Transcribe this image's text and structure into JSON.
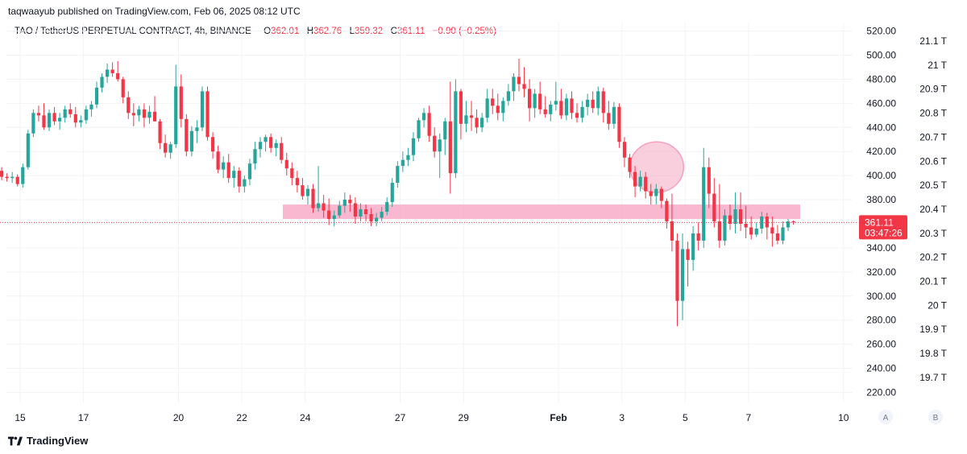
{
  "header": {
    "publisher": "taqwaayub published on TradingView.com, Feb 06, 2025 08:12 UTC",
    "symbol": "TAO / TetherUS PERPETUAL CONTRACT, 4h, BINANCE",
    "o_label": "O",
    "o_value": "362.01",
    "h_label": "H",
    "h_value": "362.76",
    "l_label": "L",
    "l_value": "359.32",
    "c_label": "C",
    "c_value": "361.11",
    "change": "−0.90 (−0.25%)"
  },
  "price_tag": {
    "price": "361.11",
    "countdown": "03:47:26"
  },
  "footer": {
    "brand": "TradingView"
  },
  "colors": {
    "up": "#26a69a",
    "down": "#f23645",
    "zone": "#f7a6c4",
    "circle": "#f5a0bc"
  },
  "axis_buttons": {
    "a": "A",
    "b": "B"
  },
  "chart_data": {
    "type": "candlestick",
    "y_axis_left_ticks": [
      "520.00",
      "500.00",
      "480.00",
      "460.00",
      "440.00",
      "420.00",
      "400.00",
      "380.00",
      "360.00",
      "340.00",
      "320.00",
      "300.00",
      "280.00",
      "260.00",
      "240.00",
      "220.00"
    ],
    "y_axis_right_ticks": [
      "21.1 T",
      "21 T",
      "20.9 T",
      "20.8 T",
      "20.7 T",
      "20.6 T",
      "20.5 T",
      "20.4 T",
      "20.3 T",
      "20.2 T",
      "20.1 T",
      "20 T",
      "19.9 T",
      "19.8 T",
      "19.7 T"
    ],
    "x_axis_ticks": [
      "15",
      "17",
      "20",
      "22",
      "24",
      "27",
      "29",
      "Feb",
      "3",
      "5",
      "7",
      "10"
    ],
    "ylim": [
      213,
      528
    ],
    "x_start": "Jan 14, 2025",
    "candles": [
      [
        400,
        405,
        398,
        402
      ],
      [
        402,
        406,
        399,
        404
      ],
      [
        404,
        407,
        396,
        399
      ],
      [
        399,
        402,
        395,
        398
      ],
      [
        398,
        403,
        394,
        399
      ],
      [
        399,
        401,
        391,
        393
      ],
      [
        393,
        410,
        390,
        407
      ],
      [
        407,
        438,
        405,
        435
      ],
      [
        435,
        455,
        432,
        452
      ],
      [
        452,
        458,
        445,
        450
      ],
      [
        450,
        460,
        438,
        440
      ],
      [
        440,
        455,
        437,
        452
      ],
      [
        452,
        457,
        442,
        445
      ],
      [
        445,
        452,
        438,
        448
      ],
      [
        448,
        458,
        444,
        455
      ],
      [
        455,
        460,
        448,
        451
      ],
      [
        451,
        457,
        440,
        444
      ],
      [
        444,
        450,
        440,
        446
      ],
      [
        446,
        458,
        443,
        455
      ],
      [
        455,
        462,
        449,
        459
      ],
      [
        459,
        478,
        456,
        473
      ],
      [
        473,
        485,
        469,
        482
      ],
      [
        482,
        493,
        477,
        488
      ],
      [
        488,
        494,
        482,
        485
      ],
      [
        485,
        495,
        478,
        480
      ],
      [
        480,
        482,
        460,
        465
      ],
      [
        465,
        470,
        447,
        452
      ],
      [
        452,
        460,
        441,
        450
      ],
      [
        450,
        458,
        445,
        455
      ],
      [
        455,
        460,
        440,
        448
      ],
      [
        448,
        458,
        443,
        453
      ],
      [
        453,
        466,
        446,
        445
      ],
      [
        445,
        447,
        422,
        427
      ],
      [
        427,
        434,
        415,
        419
      ],
      [
        419,
        428,
        414,
        426
      ],
      [
        426,
        492,
        423,
        474
      ],
      [
        474,
        484,
        440,
        447
      ],
      [
        447,
        451,
        416,
        420
      ],
      [
        420,
        441,
        416,
        437
      ],
      [
        437,
        446,
        427,
        440
      ],
      [
        440,
        474,
        437,
        470
      ],
      [
        470,
        474,
        429,
        432
      ],
      [
        432,
        436,
        414,
        420
      ],
      [
        420,
        425,
        402,
        405
      ],
      [
        405,
        416,
        398,
        411
      ],
      [
        411,
        418,
        394,
        398
      ],
      [
        398,
        408,
        390,
        404
      ],
      [
        404,
        407,
        386,
        391
      ],
      [
        391,
        400,
        386,
        397
      ],
      [
        397,
        414,
        392,
        410
      ],
      [
        410,
        428,
        405,
        422
      ],
      [
        422,
        432,
        415,
        428
      ],
      [
        428,
        434,
        420,
        432
      ],
      [
        432,
        435,
        419,
        423
      ],
      [
        423,
        430,
        416,
        427
      ],
      [
        427,
        432,
        410,
        413
      ],
      [
        413,
        419,
        400,
        406
      ],
      [
        406,
        411,
        392,
        398
      ],
      [
        398,
        404,
        386,
        392
      ],
      [
        392,
        398,
        380,
        383
      ],
      [
        383,
        392,
        376,
        389
      ],
      [
        389,
        393,
        369,
        373
      ],
      [
        373,
        408,
        370,
        377
      ],
      [
        377,
        384,
        365,
        371
      ],
      [
        371,
        381,
        359,
        364
      ],
      [
        364,
        371,
        358,
        367
      ],
      [
        367,
        379,
        365,
        375
      ],
      [
        375,
        386,
        369,
        380
      ],
      [
        380,
        384,
        370,
        377
      ],
      [
        377,
        382,
        360,
        366
      ],
      [
        366,
        377,
        362,
        372
      ],
      [
        372,
        376,
        362,
        368
      ],
      [
        368,
        373,
        358,
        362
      ],
      [
        362,
        369,
        358,
        365
      ],
      [
        365,
        374,
        362,
        370
      ],
      [
        370,
        382,
        367,
        378
      ],
      [
        378,
        398,
        374,
        394
      ],
      [
        394,
        412,
        390,
        408
      ],
      [
        408,
        420,
        403,
        413
      ],
      [
        413,
        423,
        408,
        417
      ],
      [
        417,
        436,
        412,
        431
      ],
      [
        431,
        448,
        428,
        446
      ],
      [
        446,
        456,
        440,
        452
      ],
      [
        452,
        458,
        428,
        433
      ],
      [
        433,
        440,
        415,
        420
      ],
      [
        420,
        435,
        398,
        430
      ],
      [
        430,
        448,
        417,
        445
      ],
      [
        445,
        478,
        385,
        402
      ],
      [
        402,
        480,
        398,
        470
      ],
      [
        470,
        472,
        430,
        443
      ],
      [
        443,
        462,
        436,
        450
      ],
      [
        450,
        462,
        437,
        448
      ],
      [
        448,
        455,
        435,
        440
      ],
      [
        440,
        452,
        436,
        448
      ],
      [
        448,
        472,
        444,
        464
      ],
      [
        464,
        472,
        451,
        458
      ],
      [
        458,
        468,
        446,
        452
      ],
      [
        452,
        465,
        445,
        462
      ],
      [
        462,
        476,
        458,
        470
      ],
      [
        470,
        485,
        462,
        482
      ],
      [
        482,
        497,
        470,
        476
      ],
      [
        476,
        490,
        465,
        472
      ],
      [
        472,
        480,
        445,
        456
      ],
      [
        456,
        472,
        448,
        468
      ],
      [
        468,
        478,
        451,
        455
      ],
      [
        455,
        466,
        448,
        451
      ],
      [
        451,
        462,
        445,
        459
      ],
      [
        459,
        478,
        454,
        462
      ],
      [
        462,
        472,
        447,
        450
      ],
      [
        450,
        468,
        446,
        464
      ],
      [
        464,
        470,
        447,
        452
      ],
      [
        452,
        460,
        444,
        448
      ],
      [
        448,
        462,
        444,
        457
      ],
      [
        457,
        468,
        450,
        463
      ],
      [
        463,
        470,
        452,
        456
      ],
      [
        456,
        474,
        450,
        470
      ],
      [
        470,
        473,
        444,
        452
      ],
      [
        452,
        462,
        438,
        443
      ],
      [
        443,
        461,
        439,
        457
      ],
      [
        457,
        460,
        423,
        428
      ],
      [
        428,
        432,
        407,
        415
      ],
      [
        415,
        418,
        398,
        403
      ],
      [
        403,
        408,
        382,
        391
      ],
      [
        391,
        404,
        387,
        399
      ],
      [
        399,
        403,
        381,
        387
      ],
      [
        387,
        393,
        376,
        383
      ],
      [
        383,
        393,
        376,
        389
      ],
      [
        389,
        391,
        373,
        379
      ],
      [
        379,
        381,
        356,
        362
      ],
      [
        362,
        385,
        337,
        346
      ],
      [
        346,
        352,
        275,
        296
      ],
      [
        296,
        352,
        280,
        339
      ],
      [
        339,
        345,
        308,
        330
      ],
      [
        330,
        358,
        321,
        352
      ],
      [
        352,
        361,
        338,
        346
      ],
      [
        346,
        423,
        340,
        407
      ],
      [
        407,
        415,
        373,
        385
      ],
      [
        385,
        398,
        357,
        362
      ],
      [
        362,
        393,
        340,
        346
      ],
      [
        346,
        372,
        342,
        367
      ],
      [
        367,
        376,
        355,
        360
      ],
      [
        360,
        386,
        352,
        372
      ],
      [
        372,
        386,
        354,
        360
      ],
      [
        360,
        375,
        348,
        357
      ],
      [
        357,
        366,
        347,
        351
      ],
      [
        351,
        361,
        349,
        356
      ],
      [
        356,
        370,
        352,
        366
      ],
      [
        366,
        369,
        347,
        357
      ],
      [
        357,
        366,
        341,
        352
      ],
      [
        352,
        359,
        343,
        346
      ],
      [
        346,
        362,
        343,
        357
      ],
      [
        357,
        364,
        354,
        362
      ],
      [
        362,
        362.76,
        359.32,
        361.11
      ]
    ],
    "annotations": {
      "zone": {
        "x_from": "Jan 23",
        "x_to": "Feb 9",
        "y_from": 364,
        "y_to": 376
      },
      "circle": {
        "center_x": "Feb 3",
        "center_y": 407,
        "radius_y": 21
      }
    },
    "current_price": 361.11
  }
}
